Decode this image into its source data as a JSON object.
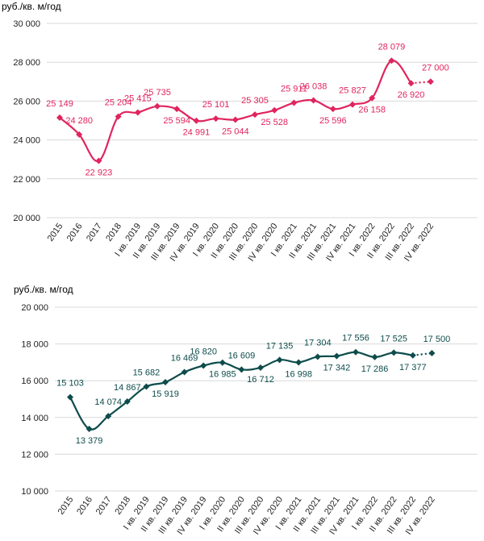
{
  "chart_data": [
    {
      "type": "line",
      "ylabel": "руб./кв. м/год",
      "ylim": [
        20000,
        30000
      ],
      "yticks": [
        "20 000",
        "22 000",
        "24 000",
        "26 000",
        "28 000",
        "30 000"
      ],
      "ytick_values": [
        20000,
        22000,
        24000,
        26000,
        28000,
        30000
      ],
      "grid": true,
      "color": "#E0245E",
      "categories": [
        "2015",
        "2016",
        "2017",
        "2018",
        "I кв. 2019",
        "II кв. 2019",
        "III кв. 2019",
        "IV кв. 2019",
        "I кв. 2020",
        "II кв. 2020",
        "III кв. 2020",
        "IV кв. 2020",
        "I кв. 2021",
        "II кв. 2021",
        "III кв. 2021",
        "IV кв. 2021",
        "I кв. 2022",
        "II кв. 2022",
        "III кв. 2022",
        "IV кв. 2022"
      ],
      "values": [
        25149,
        24280,
        22923,
        25204,
        25415,
        25735,
        25594,
        24991,
        25101,
        25044,
        25305,
        25528,
        25911,
        26038,
        25596,
        25827,
        26158,
        28079,
        26920,
        27000
      ],
      "data_labels": [
        "25 149",
        "24 280",
        "22 923",
        "25 204",
        "25 415",
        "25 735",
        "25 594",
        "24 991",
        "25 101",
        "25 044",
        "25 305",
        "25 528",
        "25 911",
        "26 038",
        "25 596",
        "25 827",
        "26 158",
        "28 079",
        "26 920",
        "27 000"
      ],
      "forecast_from_index": 18
    },
    {
      "type": "line",
      "ylabel": "руб./кв. м/год",
      "ylim": [
        10000,
        20000
      ],
      "yticks": [
        "10 000",
        "12 000",
        "14 000",
        "16 000",
        "18 000",
        "20 000"
      ],
      "ytick_values": [
        10000,
        12000,
        14000,
        16000,
        18000,
        20000
      ],
      "grid": true,
      "color": "#0E4C4C",
      "categories": [
        "2015",
        "2016",
        "2017",
        "2018",
        "I кв. 2019",
        "II кв. 2019",
        "III кв. 2019",
        "IV кв. 2019",
        "I кв. 2020",
        "II кв. 2020",
        "III кв. 2020",
        "IV кв. 2020",
        "I кв. 2021",
        "II кв. 2021",
        "III кв. 2021",
        "IV кв. 2021",
        "I кв. 2022",
        "II кв. 2022",
        "III кв. 2022",
        "IV кв. 2022"
      ],
      "values": [
        15103,
        13379,
        14074,
        14867,
        15682,
        15919,
        16469,
        16820,
        16985,
        16609,
        16712,
        17135,
        16998,
        17304,
        17342,
        17556,
        17286,
        17525,
        17377,
        17500
      ],
      "data_labels": [
        "15 103",
        "13 379",
        "14 074",
        "14 867",
        "15 682",
        "15 919",
        "16 469",
        "16 820",
        "16 985",
        "16 609",
        "16 712",
        "17 135",
        "16 998",
        "17 304",
        "17 342",
        "17 556",
        "17 286",
        "17 525",
        "17 377",
        "17 500"
      ],
      "forecast_from_index": 18
    }
  ]
}
